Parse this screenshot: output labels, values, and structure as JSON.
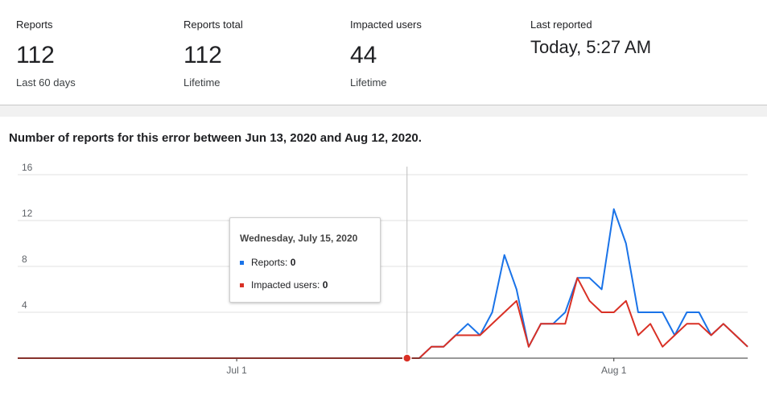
{
  "stats": [
    {
      "label": "Reports",
      "value": "112",
      "sub": "Last 60 days"
    },
    {
      "label": "Reports total",
      "value": "112",
      "sub": "Lifetime"
    },
    {
      "label": "Impacted users",
      "value": "44",
      "sub": "Lifetime"
    },
    {
      "label": "Last reported",
      "value": "Today, 5:27 AM",
      "sub": ""
    }
  ],
  "chart_title": "Number of reports for this error between Jun 13, 2020 and Aug 12, 2020.",
  "tooltip": {
    "date": "Wednesday, July 15, 2020",
    "reports_label": "Reports: ",
    "reports_value": "0",
    "users_label": "Impacted users: ",
    "users_value": "0"
  },
  "colors": {
    "reports": "#1a73e8",
    "users": "#d93025",
    "marker": "#d93025"
  },
  "chart_data": {
    "type": "line",
    "x_range": [
      "2020-06-13",
      "2020-08-12"
    ],
    "ylim": [
      0,
      16
    ],
    "y_ticks": [
      "4",
      "8",
      "12",
      "16"
    ],
    "y_tick_values": [
      4,
      8,
      12,
      16
    ],
    "x_tick_labels": [
      "Jul 1",
      "Aug 1"
    ],
    "x_tick_dates": [
      "2020-07-01",
      "2020-08-01"
    ],
    "highlight_date": "2020-07-15",
    "series": [
      {
        "name": "Reports",
        "color": "#1a73e8",
        "points": [
          [
            "2020-06-13",
            0
          ],
          [
            "2020-07-15",
            0
          ],
          [
            "2020-07-16",
            0
          ],
          [
            "2020-07-17",
            1
          ],
          [
            "2020-07-18",
            1
          ],
          [
            "2020-07-19",
            2
          ],
          [
            "2020-07-20",
            3
          ],
          [
            "2020-07-21",
            2
          ],
          [
            "2020-07-22",
            4
          ],
          [
            "2020-07-23",
            9
          ],
          [
            "2020-07-24",
            6
          ],
          [
            "2020-07-25",
            1
          ],
          [
            "2020-07-26",
            3
          ],
          [
            "2020-07-27",
            3
          ],
          [
            "2020-07-28",
            4
          ],
          [
            "2020-07-29",
            7
          ],
          [
            "2020-07-30",
            7
          ],
          [
            "2020-07-31",
            6
          ],
          [
            "2020-08-01",
            13
          ],
          [
            "2020-08-02",
            10
          ],
          [
            "2020-08-03",
            4
          ],
          [
            "2020-08-04",
            4
          ],
          [
            "2020-08-05",
            4
          ],
          [
            "2020-08-06",
            2
          ],
          [
            "2020-08-07",
            4
          ],
          [
            "2020-08-08",
            4
          ],
          [
            "2020-08-09",
            2
          ],
          [
            "2020-08-10",
            3
          ],
          [
            "2020-08-11",
            2
          ],
          [
            "2020-08-12",
            1
          ]
        ]
      },
      {
        "name": "Impacted users",
        "color": "#d93025",
        "points": [
          [
            "2020-06-13",
            0
          ],
          [
            "2020-07-15",
            0
          ],
          [
            "2020-07-16",
            0
          ],
          [
            "2020-07-17",
            1
          ],
          [
            "2020-07-18",
            1
          ],
          [
            "2020-07-19",
            2
          ],
          [
            "2020-07-20",
            2
          ],
          [
            "2020-07-21",
            2
          ],
          [
            "2020-07-23",
            4
          ],
          [
            "2020-07-24",
            5
          ],
          [
            "2020-07-25",
            1
          ],
          [
            "2020-07-26",
            3
          ],
          [
            "2020-07-27",
            3
          ],
          [
            "2020-07-28",
            3
          ],
          [
            "2020-07-29",
            7
          ],
          [
            "2020-07-30",
            5
          ],
          [
            "2020-07-31",
            4
          ],
          [
            "2020-08-01",
            4
          ],
          [
            "2020-08-02",
            5
          ],
          [
            "2020-08-03",
            2
          ],
          [
            "2020-08-04",
            3
          ],
          [
            "2020-08-05",
            1
          ],
          [
            "2020-08-06",
            2
          ],
          [
            "2020-08-07",
            3
          ],
          [
            "2020-08-08",
            3
          ],
          [
            "2020-08-09",
            2
          ],
          [
            "2020-08-10",
            3
          ],
          [
            "2020-08-11",
            2
          ],
          [
            "2020-08-12",
            1
          ]
        ]
      }
    ]
  }
}
